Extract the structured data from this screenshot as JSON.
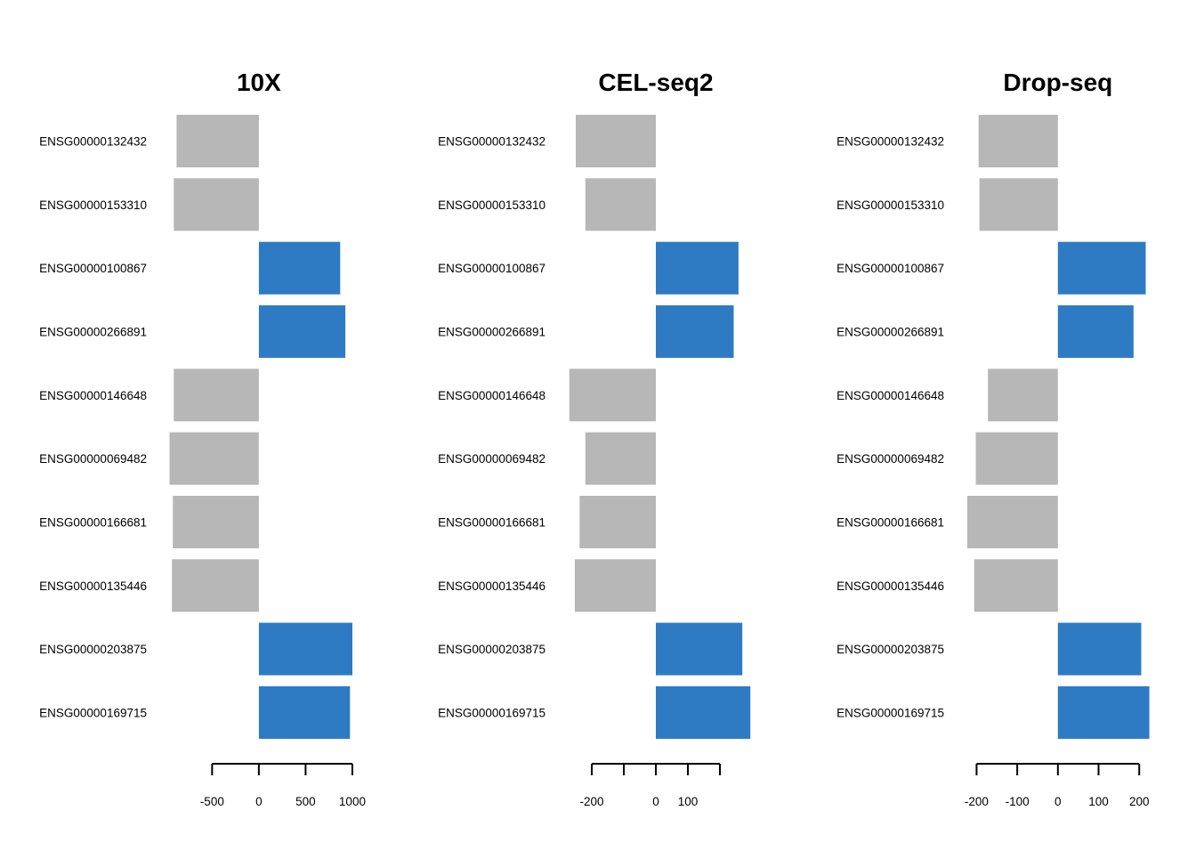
{
  "colors": {
    "positive": "#2e7bc4",
    "negative": "#b7b7b7",
    "axis": "#000000",
    "background": "#ffffff"
  },
  "chart_data": [
    {
      "type": "bar",
      "orientation": "horizontal",
      "title": "10X",
      "categories": [
        "ENSG00000132432",
        "ENSG00000153310",
        "ENSG00000100867",
        "ENSG00000266891",
        "ENSG00000146648",
        "ENSG00000069482",
        "ENSG00000166681",
        "ENSG00000135446",
        "ENSG00000203875",
        "ENSG00000169715"
      ],
      "values": [
        -880,
        -910,
        870,
        925,
        -910,
        -955,
        -920,
        -930,
        1000,
        975
      ],
      "xlim": [
        -960,
        1010
      ],
      "ticks": [
        -500,
        0,
        500,
        1000
      ],
      "tick_labels": [
        "-500",
        "0",
        "500",
        "1000"
      ],
      "grid": false
    },
    {
      "type": "bar",
      "orientation": "horizontal",
      "title": "CEL-seq2",
      "categories": [
        "ENSG00000132432",
        "ENSG00000153310",
        "ENSG00000100867",
        "ENSG00000266891",
        "ENSG00000146648",
        "ENSG00000069482",
        "ENSG00000166681",
        "ENSG00000135446",
        "ENSG00000203875",
        "ENSG00000169715"
      ],
      "values": [
        -250,
        -220,
        258,
        243,
        -270,
        -220,
        -238,
        -253,
        270,
        295
      ],
      "xlim": [
        -275,
        300
      ],
      "ticks": [
        -200,
        -100,
        0,
        100,
        200
      ],
      "tick_labels": [
        "-200",
        "",
        "0",
        "100",
        ""
      ],
      "grid": false
    },
    {
      "type": "bar",
      "orientation": "horizontal",
      "title": "Drop-seq",
      "categories": [
        "ENSG00000132432",
        "ENSG00000153310",
        "ENSG00000100867",
        "ENSG00000266891",
        "ENSG00000146648",
        "ENSG00000069482",
        "ENSG00000166681",
        "ENSG00000135446",
        "ENSG00000203875",
        "ENSG00000169715"
      ],
      "values": [
        -195,
        -193,
        216,
        186,
        -172,
        -202,
        -223,
        -206,
        205,
        225
      ],
      "xlim": [
        -225,
        228
      ],
      "ticks": [
        -200,
        -100,
        0,
        100,
        200
      ],
      "tick_labels": [
        "-200",
        "-100",
        "0",
        "100",
        "200"
      ],
      "grid": false
    }
  ]
}
